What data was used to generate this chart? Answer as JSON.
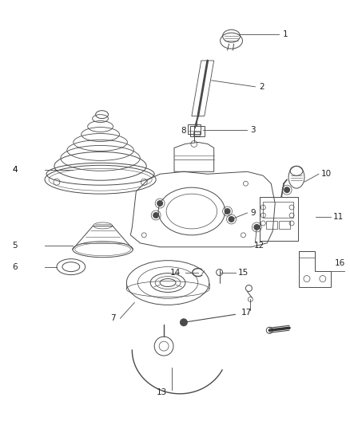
{
  "bg_color": "#ffffff",
  "lc": "#4a4a4a",
  "lc2": "#666666",
  "label_fs": 7.5,
  "lw": 0.7,
  "fig_w": 4.38,
  "fig_h": 5.33,
  "dpi": 100
}
